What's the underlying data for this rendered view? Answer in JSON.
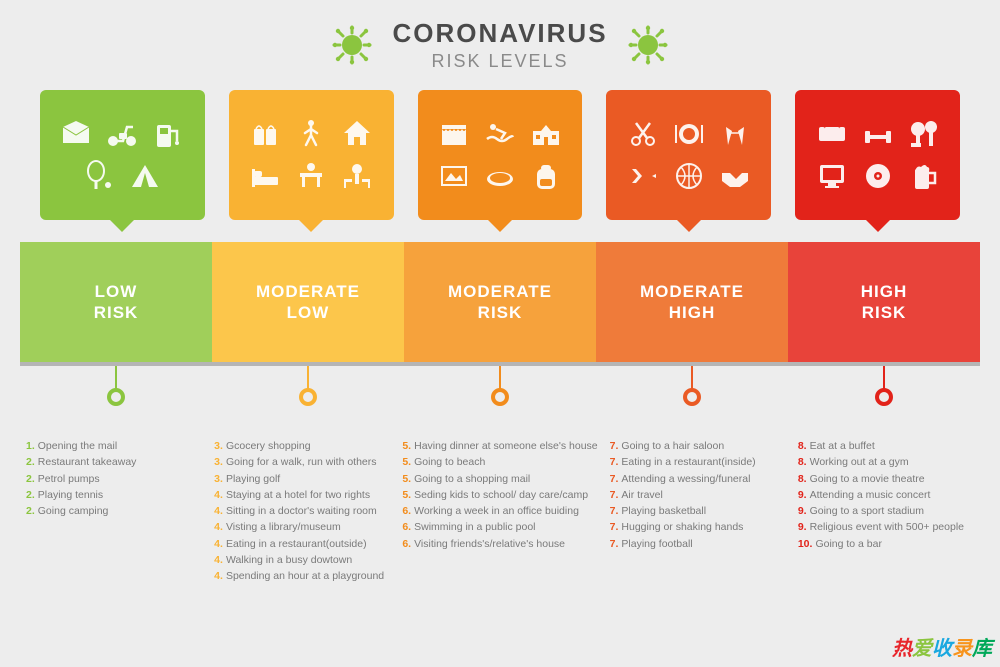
{
  "header": {
    "title1": "CORONAVIRUS",
    "title2": "RISK LEVELS",
    "virus_color": "#8bc53f"
  },
  "columns": [
    {
      "card_color": "#8bc53f",
      "bar_color": "#a0cf5a",
      "label_line1": "LOW",
      "label_line2": "RISK",
      "icons": [
        "mail",
        "scooter",
        "pump",
        "racket",
        "tent"
      ],
      "items": [
        {
          "n": "1",
          "t": "Opening the mail"
        },
        {
          "n": "2",
          "t": "Restaurant takeaway"
        },
        {
          "n": "2",
          "t": "Petrol pumps"
        },
        {
          "n": "2",
          "t": "Playing tennis"
        },
        {
          "n": "2",
          "t": "Going camping"
        }
      ]
    },
    {
      "card_color": "#f9b233",
      "bar_color": "#fcc64b",
      "label_line1": "MODERATE",
      "label_line2": "LOW",
      "icons": [
        "bag",
        "walker",
        "house",
        "bed",
        "desk",
        "chairs"
      ],
      "items": [
        {
          "n": "3",
          "t": "Gcocery shopping"
        },
        {
          "n": "3",
          "t": "Going for a walk, run with others"
        },
        {
          "n": "3",
          "t": "Playing golf"
        },
        {
          "n": "4",
          "t": "Staying at a hotel for two rights"
        },
        {
          "n": "4",
          "t": "Sitting in a doctor's waiting room"
        },
        {
          "n": "4",
          "t": "Visting a library/museum"
        },
        {
          "n": "4",
          "t": "Eating in a restaurant(outside)"
        },
        {
          "n": "4",
          "t": "Walking in a busy dowtown"
        },
        {
          "n": "4",
          "t": "Spending an hour at a playground"
        }
      ]
    },
    {
      "card_color": "#f28c1c",
      "bar_color": "#f6a23c",
      "label_line1": "MODERATE",
      "label_line2": "RISK",
      "icons": [
        "shop",
        "swim",
        "school",
        "frame",
        "pool",
        "backpack"
      ],
      "items": [
        {
          "n": "5",
          "t": "Having dinner at someone else's house"
        },
        {
          "n": "5",
          "t": "Going to beach"
        },
        {
          "n": "5",
          "t": "Going to a shopping mail"
        },
        {
          "n": "5",
          "t": "Seding kids to school/ day care/camp"
        },
        {
          "n": "6",
          "t": "Working a week in an office buiding"
        },
        {
          "n": "6",
          "t": "Swimming in a public pool"
        },
        {
          "n": "6",
          "t": "Visiting friends's/relative's house"
        }
      ]
    },
    {
      "card_color": "#ea5a24",
      "bar_color": "#ef7b3a",
      "label_line1": "MODERATE",
      "label_line2": "HIGH",
      "icons": [
        "scissors",
        "plate",
        "glasses",
        "plane",
        "basketball",
        "handshake"
      ],
      "items": [
        {
          "n": "7",
          "t": "Going to a hair saloon"
        },
        {
          "n": "7",
          "t": "Eating in a restaurant(inside)"
        },
        {
          "n": "7",
          "t": "Attending a wessing/funeral"
        },
        {
          "n": "7",
          "t": "Air travel"
        },
        {
          "n": "7",
          "t": "Playing basketball"
        },
        {
          "n": "7",
          "t": "Hugging or shaking hands"
        },
        {
          "n": "7",
          "t": "Playing football"
        }
      ]
    },
    {
      "card_color": "#e2231a",
      "bar_color": "#e8433a",
      "label_line1": "HIGH",
      "label_line2": "RISK",
      "icons": [
        "couch",
        "dumbbell",
        "trees",
        "screen",
        "disc",
        "beer"
      ],
      "items": [
        {
          "n": "8",
          "t": "Eat at a buffet"
        },
        {
          "n": "8",
          "t": "Working out at a gym"
        },
        {
          "n": "8",
          "t": "Going to a movie theatre"
        },
        {
          "n": "9",
          "t": "Attending a music concert"
        },
        {
          "n": "9",
          "t": "Going to a sport stadium"
        },
        {
          "n": "9",
          "t": "Religious event with 500+ people"
        },
        {
          "n": "10",
          "t": "Going to a bar"
        }
      ]
    }
  ],
  "watermark": {
    "text": "热爱收录库"
  },
  "background_color": "#ededed",
  "timeline_color": "#b5b5b5",
  "text_color": "#7a7a7a"
}
